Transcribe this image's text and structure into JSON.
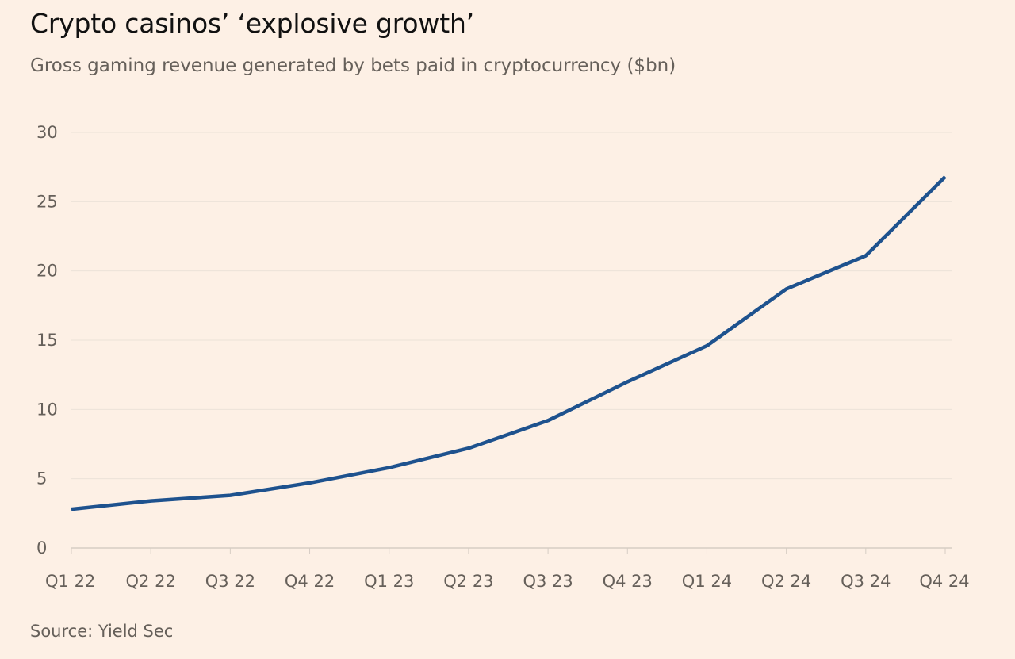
{
  "colors": {
    "background": "#fdf0e5",
    "line": "#1e528e",
    "gridline": "#ece2d8",
    "baseline": "#d6cdc4",
    "title_text": "#111111",
    "muted_text": "#66605a"
  },
  "chart_data": {
    "type": "line",
    "title": "Crypto casinos’ ‘explosive growth’",
    "subtitle": "Gross gaming revenue generated by bets paid in cryptocurrency ($bn)",
    "source": "Source: Yield Sec",
    "xlabel": "",
    "ylabel": "",
    "categories": [
      "Q1 22",
      "Q2 22",
      "Q3 22",
      "Q4 22",
      "Q1 23",
      "Q2 23",
      "Q3 23",
      "Q4 23",
      "Q1 24",
      "Q2 24",
      "Q3 24",
      "Q4 24"
    ],
    "series": [
      {
        "name": "Gross gaming revenue",
        "values": [
          2.8,
          3.4,
          3.8,
          4.7,
          5.8,
          7.2,
          9.2,
          12.0,
          14.6,
          18.7,
          21.1,
          26.8
        ]
      }
    ],
    "ylim": [
      0,
      30
    ],
    "yticks": [
      0,
      5,
      10,
      15,
      20,
      25,
      30
    ],
    "ytick_labels": [
      "0",
      "5",
      "10",
      "15",
      "20",
      "25",
      "30"
    ],
    "grid": true,
    "legend": "none"
  }
}
